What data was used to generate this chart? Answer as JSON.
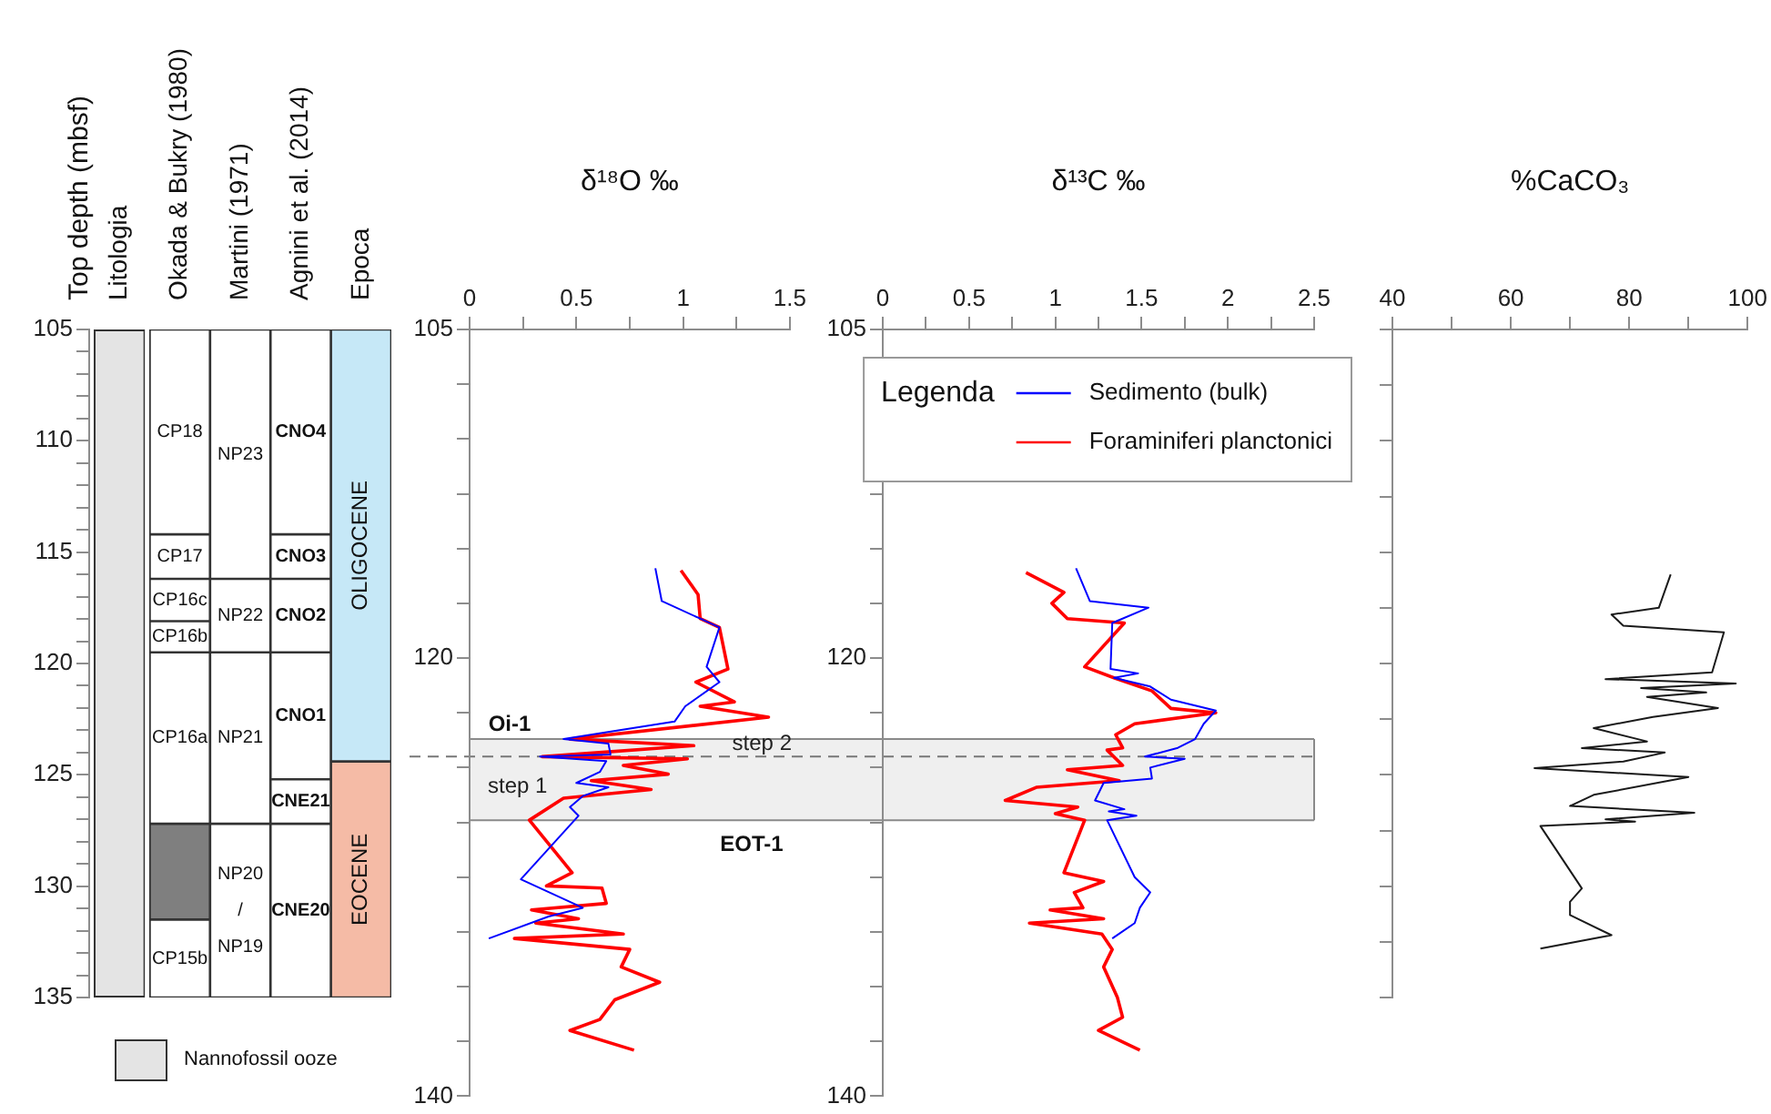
{
  "chart_data": [
    {
      "type": "bar",
      "ylabel": "Top depth (mbsf)",
      "categories": [
        "Litologia",
        "Okada & Bukry (1980)",
        "Martini (1971)",
        "Agnini et al. (2014)",
        "Epoca"
      ],
      "ylim": [
        135,
        105
      ],
      "yticks": [
        105,
        {
          "value": 106,
          "label": null
        },
        {
          "value": 107,
          "label": null
        },
        {
          "value": 108,
          "label": null
        },
        {
          "value": 109,
          "label": null
        },
        110,
        {
          "value": 111,
          "label": null
        },
        {
          "value": 112,
          "label": null
        },
        {
          "value": 113,
          "label": null
        },
        {
          "value": 114,
          "label": null
        },
        115,
        {
          "value": 116,
          "label": null
        },
        {
          "value": 117,
          "label": null
        },
        {
          "value": 118,
          "label": null
        },
        {
          "value": 119,
          "label": null
        },
        120,
        {
          "value": 121,
          "label": null
        },
        {
          "value": 122,
          "label": null
        },
        {
          "value": 123,
          "label": null
        },
        {
          "value": 124,
          "label": null
        },
        125,
        {
          "value": 126,
          "label": null
        },
        {
          "value": 127,
          "label": null
        },
        {
          "value": 128,
          "label": null
        },
        {
          "value": 129,
          "label": null
        },
        130,
        {
          "value": 131,
          "label": null
        },
        {
          "value": 132,
          "label": null
        },
        {
          "value": 133,
          "label": null
        },
        {
          "value": 134,
          "label": null
        },
        135
      ],
      "legend": "bottom",
      "series": [
        {
          "name": "Nannofossil ooze",
          "base": [
            105,
            null,
            null,
            null,
            null
          ],
          "values": [
            30,
            null,
            null,
            null,
            null
          ],
          "colors": [
            "#e4e4e4",
            null,
            null,
            null,
            null
          ]
        },
        {
          "base": [
            null,
            105,
            105,
            105,
            105
          ],
          "values": [
            null,
            9.2,
            11.2,
            9.2,
            19.4
          ],
          "colors": [
            null,
            "#ffffff",
            "#ffffff",
            "#ffffff",
            "#c6e8f7"
          ],
          "value_labels": [
            null,
            "CP18",
            "NP23",
            "CNO4",
            "OLIGOCENE"
          ]
        },
        {
          "base": [
            null,
            114.2,
            116.2,
            114.2,
            124.4
          ],
          "values": [
            null,
            2.0,
            3.3,
            2.0,
            10.6
          ],
          "colors": [
            null,
            "#ffffff",
            "#ffffff",
            "#ffffff",
            "#f5bba6"
          ],
          "value_labels": [
            null,
            "CP17",
            "NP22",
            "CNO3",
            "EOCENE"
          ]
        },
        {
          "base": [
            null,
            116.2,
            119.5,
            116.2,
            null
          ],
          "values": [
            null,
            1.9,
            7.7,
            3.3,
            null
          ],
          "colors": [
            null,
            "#ffffff",
            "#ffffff",
            "#ffffff",
            null
          ],
          "value_labels": [
            null,
            "CP16c",
            "NP21",
            "CNO2",
            null
          ]
        },
        {
          "base": [
            null,
            118.1,
            127.2,
            119.5,
            null
          ],
          "values": [
            null,
            1.4,
            7.8,
            5.7,
            null
          ],
          "colors": [
            null,
            "#ffffff",
            "#ffffff",
            "#ffffff",
            null
          ],
          "value_labels": [
            null,
            "CP16b",
            "NP20 / NP19",
            "CNO1",
            null
          ]
        },
        {
          "base": [
            null,
            119.5,
            null,
            125.2,
            null
          ],
          "values": [
            null,
            7.7,
            null,
            2.0,
            null
          ],
          "colors": [
            null,
            "#ffffff",
            null,
            "#ffffff",
            null
          ],
          "value_labels": [
            null,
            "CP16a",
            null,
            "CNE21",
            null
          ]
        },
        {
          "base": [
            null,
            127.2,
            null,
            127.2,
            null
          ],
          "values": [
            null,
            4.3,
            null,
            7.8,
            null
          ],
          "colors": [
            null,
            "#7f7f7f",
            null,
            "#ffffff",
            null
          ],
          "value_labels": [
            null,
            null,
            null,
            "CNE20",
            null
          ]
        },
        {
          "base": [
            null,
            131.5,
            null,
            null,
            null
          ],
          "values": [
            null,
            3.5,
            null,
            null,
            null
          ],
          "colors": [
            null,
            "#ffffff",
            null,
            null,
            null
          ],
          "value_labels": [
            null,
            "CP15b",
            null,
            null,
            null
          ]
        }
      ]
    },
    {
      "type": "line",
      "title": "δ¹⁸O ‰",
      "xlim": [
        0,
        1.5
      ],
      "xticks": [
        0,
        {
          "value": 0.25,
          "label": null
        },
        0.5,
        {
          "value": 0.75,
          "label": null
        },
        1,
        {
          "value": 1.25,
          "label": null
        },
        1.5
      ],
      "ylim": [
        140,
        105
      ],
      "yticks": [
        105,
        {
          "value": 107.5,
          "label": null
        },
        {
          "value": 110,
          "label": null
        },
        {
          "value": 112.5,
          "label": null
        },
        {
          "value": 115,
          "label": null
        },
        {
          "value": 117.5,
          "label": null
        },
        120,
        {
          "value": 122.5,
          "label": null
        },
        {
          "value": 125,
          "label": null
        },
        {
          "value": 127.5,
          "label": null
        },
        {
          "value": 130,
          "label": null
        },
        {
          "value": 132.5,
          "label": null
        },
        {
          "value": 135,
          "label": null
        },
        {
          "value": 137.5,
          "label": null
        },
        140
      ],
      "bands": [
        {
          "axis": "y",
          "from": 123.7,
          "to": 127.4,
          "label": "step 1",
          "color": "#efefef"
        }
      ],
      "ref_lines": [
        {
          "axis": "y",
          "value": 124.5,
          "label": "step 2",
          "line_style": "dashed"
        }
      ],
      "annotations": [
        "Oi-1",
        "EOT-1"
      ],
      "series": [
        {
          "color": "#0000ff",
          "x": [
            0.87,
            0.9,
            1.08,
            1.17,
            1.11,
            1.17,
            1.01,
            0.96,
            0.44,
            0.65,
            0.66,
            0.33,
            0.64,
            0.61,
            0.5,
            0.65,
            0.53,
            0.47,
            0.51,
            0.24,
            0.53,
            0.37,
            0.09
          ],
          "values": [
            115.9,
            117.4,
            118.2,
            118.6,
            120.4,
            121.1,
            122.2,
            122.9,
            123.7,
            123.9,
            124.4,
            124.5,
            124.7,
            125.2,
            125.7,
            125.9,
            126.3,
            126.8,
            127.2,
            130.1,
            131.4,
            131.8,
            132.8
          ]
        },
        {
          "color": "#ff0000",
          "x": [
            0.99,
            1.07,
            1.08,
            1.17,
            1.21,
            1.06,
            1.24,
            1.08,
            1.4,
            0.47,
            1.05,
            0.34,
            1.02,
            0.72,
            0.93,
            0.57,
            0.85,
            0.44,
            0.28,
            0.48,
            0.36,
            0.62,
            0.64,
            0.29,
            0.51,
            0.31,
            0.72,
            0.21,
            0.75,
            0.71,
            0.89,
            0.68,
            0.61,
            0.47,
            0.77
          ],
          "values": [
            116.0,
            117.1,
            118.2,
            118.6,
            120.5,
            121.1,
            122.0,
            122.2,
            122.7,
            123.7,
            124.0,
            124.5,
            124.6,
            124.9,
            125.3,
            125.6,
            126.0,
            126.4,
            127.4,
            129.8,
            130.4,
            130.5,
            131.2,
            131.5,
            131.9,
            132.1,
            132.6,
            132.8,
            133.3,
            134.1,
            134.8,
            135.6,
            136.5,
            137.0,
            137.9
          ]
        }
      ]
    },
    {
      "type": "line",
      "title": "δ¹³C ‰",
      "xlim": [
        0,
        2.5
      ],
      "xticks": [
        0,
        {
          "value": 0.25,
          "label": null
        },
        0.5,
        {
          "value": 0.75,
          "label": null
        },
        1,
        {
          "value": 1.25,
          "label": null
        },
        1.5,
        {
          "value": 1.75,
          "label": null
        },
        2,
        {
          "value": 2.25,
          "label": null
        },
        2.5
      ],
      "ylim": [
        140,
        105
      ],
      "yticks": [
        105,
        {
          "value": 107.5,
          "label": null
        },
        {
          "value": 110,
          "label": null
        },
        {
          "value": 112.5,
          "label": null
        },
        {
          "value": 115,
          "label": null
        },
        {
          "value": 117.5,
          "label": null
        },
        120,
        {
          "value": 122.5,
          "label": null
        },
        {
          "value": 125,
          "label": null
        },
        {
          "value": 127.5,
          "label": null
        },
        {
          "value": 130,
          "label": null
        },
        {
          "value": 132.5,
          "label": null
        },
        {
          "value": 135,
          "label": null
        },
        {
          "value": 137.5,
          "label": null
        },
        140
      ],
      "bands": [
        {
          "axis": "y",
          "from": 123.7,
          "to": 127.4,
          "color": "#efefef"
        }
      ],
      "ref_lines": [
        {
          "axis": "y",
          "value": 124.5,
          "line_style": "dashed"
        }
      ],
      "legend": "top right",
      "legend_title": "Legenda",
      "series": [
        {
          "name": "Sedimento (bulk)",
          "color": "#0000ff",
          "x": [
            1.12,
            1.2,
            1.54,
            1.33,
            1.32,
            1.48,
            1.34,
            1.55,
            1.67,
            1.93,
            1.86,
            1.81,
            1.71,
            1.52,
            1.75,
            1.55,
            1.56,
            1.28,
            1.23,
            1.4,
            1.31,
            1.47,
            1.3,
            1.46,
            1.55,
            1.49,
            1.46,
            1.33
          ],
          "values": [
            115.9,
            117.4,
            117.7,
            118.4,
            120.5,
            120.7,
            120.9,
            121.3,
            121.9,
            122.4,
            123.0,
            123.7,
            124.1,
            124.5,
            124.6,
            125.0,
            125.5,
            125.7,
            126.5,
            126.9,
            127.0,
            127.2,
            127.4,
            130.0,
            130.7,
            131.4,
            132.1,
            132.8
          ]
        },
        {
          "name": "Foraminiferi planctonici",
          "color": "#ff0000",
          "x": [
            0.83,
            1.05,
            0.98,
            1.07,
            1.4,
            1.17,
            1.34,
            1.56,
            1.67,
            1.93,
            1.46,
            1.35,
            1.39,
            1.3,
            1.39,
            1.07,
            1.37,
            0.89,
            0.71,
            1.13,
            1.0,
            1.17,
            1.05,
            1.28,
            1.11,
            1.16,
            0.97,
            1.28,
            0.85,
            1.27,
            1.33,
            1.28,
            1.36,
            1.39,
            1.25,
            1.49
          ],
          "values": [
            116.1,
            117.0,
            117.5,
            118.2,
            118.4,
            120.4,
            120.9,
            121.5,
            122.3,
            122.5,
            123.0,
            123.5,
            124.1,
            124.2,
            124.9,
            125.1,
            125.6,
            125.9,
            126.5,
            126.8,
            127.1,
            127.4,
            129.8,
            130.2,
            130.7,
            131.4,
            131.5,
            131.9,
            132.1,
            132.6,
            133.3,
            134.1,
            135.5,
            136.4,
            137.0,
            137.9
          ]
        }
      ]
    },
    {
      "type": "line",
      "title": "%CaCO₃",
      "xlim": [
        40,
        100
      ],
      "xticks": [
        40,
        {
          "value": 50,
          "label": null
        },
        60,
        {
          "value": 70,
          "label": null
        },
        80,
        {
          "value": 90,
          "label": null
        },
        100
      ],
      "ylim": [
        135,
        105
      ],
      "tick_labels": "x",
      "yticks": [
        {
          "value": 105,
          "label": null
        },
        {
          "value": 107.5,
          "label": null
        },
        {
          "value": 110,
          "label": null
        },
        {
          "value": 112.5,
          "label": null
        },
        {
          "value": 115,
          "label": null
        },
        {
          "value": 117.5,
          "label": null
        },
        {
          "value": 120,
          "label": null
        },
        {
          "value": 122.5,
          "label": null
        },
        {
          "value": 125,
          "label": null
        },
        {
          "value": 127.5,
          "label": null
        },
        {
          "value": 130,
          "label": null
        },
        {
          "value": 132.5,
          "label": null
        },
        {
          "value": 135,
          "label": null
        }
      ],
      "series": [
        {
          "color": "#1a1a1a",
          "x": [
            87,
            85,
            77,
            79,
            96,
            94,
            76,
            98,
            82,
            93,
            83,
            95,
            84,
            74,
            83,
            72,
            86,
            79,
            64,
            90,
            74,
            70,
            91,
            76,
            81,
            65,
            72,
            70,
            70,
            77,
            65
          ],
          "values": [
            116.0,
            117.5,
            117.8,
            118.3,
            118.6,
            120.4,
            120.7,
            120.9,
            121.1,
            121.3,
            121.5,
            122.0,
            122.4,
            122.9,
            123.5,
            123.8,
            124.0,
            124.4,
            124.7,
            125.1,
            125.9,
            126.4,
            126.7,
            127.0,
            127.1,
            127.3,
            130.1,
            130.7,
            131.3,
            132.2,
            132.8
          ]
        }
      ]
    }
  ]
}
